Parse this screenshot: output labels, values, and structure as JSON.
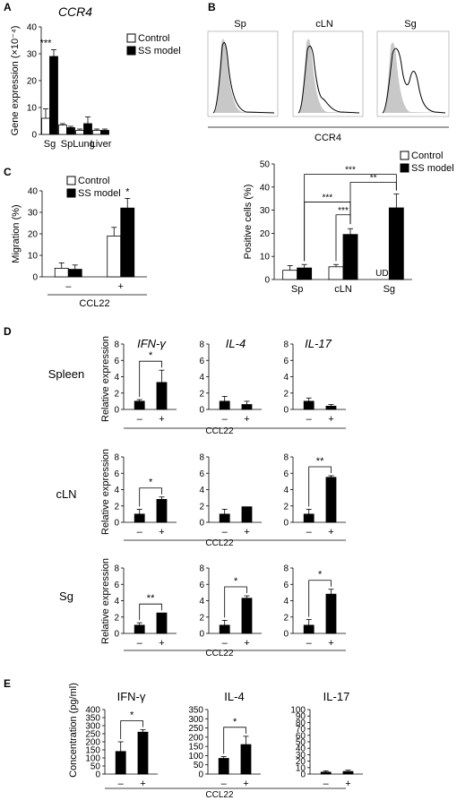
{
  "panel_letters": {
    "a": "A",
    "b": "B",
    "c": "C",
    "d": "D",
    "e": "E"
  },
  "legend": {
    "control": "Control",
    "ss_model": "SS model"
  },
  "colors": {
    "control_fill": "#ffffff",
    "ss_fill": "#000000",
    "histogram_fill": "#c8c8c8",
    "axis": "#000000"
  },
  "stimulation": {
    "minus": "–",
    "plus": "+",
    "ccl22": "CCL22"
  },
  "panel_b": {
    "headers": [
      "Sp",
      "cLN",
      "Sg"
    ],
    "xlabel": "CCR4",
    "histogram_style": "grey filled isotype vs black outlined CCR4 staining"
  },
  "panel_d": {
    "markers": [
      "IFN-γ",
      "IL-4",
      "IL-17"
    ],
    "tissues": [
      "Spleen",
      "cLN",
      "Sg"
    ],
    "ylabel": "Relative expression"
  },
  "panel_e": {
    "ylabel": "Concentration (pg/ml)"
  },
  "chart_data": [
    {
      "id": "A",
      "type": "bar",
      "title": "CCR4",
      "ylabel": "Gene expression (×10⁻⁴)",
      "ylim": [
        0,
        40
      ],
      "yticks": [
        0,
        10,
        20,
        30,
        40
      ],
      "categories": [
        "Sg",
        "Sp",
        "Lung",
        "Liver"
      ],
      "series": [
        {
          "name": "Control",
          "values": [
            6,
            3.5,
            1.5,
            1.5
          ],
          "errors": [
            3.5,
            0.5,
            0.5,
            0.5
          ]
        },
        {
          "name": "SS model",
          "values": [
            29,
            2.5,
            4,
            1.5
          ],
          "errors": [
            2.5,
            0.5,
            2.5,
            0.5
          ]
        }
      ],
      "annotations": [
        {
          "category": "Sg",
          "text": "***"
        }
      ]
    },
    {
      "id": "C",
      "type": "bar",
      "ylabel": "Migration (%)",
      "ylim": [
        0,
        40
      ],
      "yticks": [
        0,
        10,
        20,
        30,
        40
      ],
      "categories": [
        "–",
        "+"
      ],
      "xlabel": "CCL22",
      "series": [
        {
          "name": "Control",
          "values": [
            4,
            19
          ],
          "errors": [
            2.5,
            4
          ]
        },
        {
          "name": "SS model",
          "values": [
            3.5,
            32
          ],
          "errors": [
            2,
            4.5
          ]
        }
      ],
      "annotations": [
        {
          "category": "+",
          "text": "*"
        }
      ]
    },
    {
      "id": "B-right",
      "type": "bar",
      "ylabel": "Positive cells (%)",
      "ylim": [
        0,
        50
      ],
      "yticks": [
        0,
        10,
        20,
        30,
        40,
        50
      ],
      "categories": [
        "Sp",
        "cLN",
        "Sg"
      ],
      "series": [
        {
          "name": "Control",
          "values": [
            4,
            5.5,
            null
          ],
          "errors": [
            2,
            1,
            null
          ]
        },
        {
          "name": "SS model",
          "values": [
            5,
            19.5,
            31
          ],
          "errors": [
            1.5,
            2.5,
            6
          ]
        }
      ],
      "ud_label": "UD",
      "brackets": [
        {
          "text": "***",
          "from": "Sp SS model",
          "to": "Sg SS model"
        },
        {
          "text": "***",
          "from": "Sp SS model",
          "to": "cLN SS model"
        },
        {
          "text": "***",
          "from": "cLN Control",
          "to": "cLN SS model"
        },
        {
          "text": "**",
          "from": "cLN SS model",
          "to": "Sg SS model"
        }
      ]
    },
    {
      "id": "D-Spleen-IFN",
      "type": "bar",
      "ylim": [
        0,
        8
      ],
      "yticks": [
        0,
        2,
        4,
        6,
        8
      ],
      "categories": [
        "–",
        "+"
      ],
      "values": [
        1,
        3.3
      ],
      "errors": [
        0.2,
        1.5
      ],
      "signif": "*"
    },
    {
      "id": "D-Spleen-IL4",
      "type": "bar",
      "ylim": [
        0,
        8
      ],
      "yticks": [
        0,
        2,
        4,
        6,
        8
      ],
      "categories": [
        "–",
        "+"
      ],
      "values": [
        1,
        0.6
      ],
      "errors": [
        0.6,
        0.4
      ],
      "signif": ""
    },
    {
      "id": "D-Spleen-IL17",
      "type": "bar",
      "ylim": [
        0,
        8
      ],
      "yticks": [
        0,
        2,
        4,
        6,
        8
      ],
      "categories": [
        "–",
        "+"
      ],
      "values": [
        1,
        0.4
      ],
      "errors": [
        0.4,
        0.2
      ],
      "signif": ""
    },
    {
      "id": "D-cLN-IFN",
      "type": "bar",
      "ylim": [
        0,
        8
      ],
      "yticks": [
        0,
        2,
        4,
        6,
        8
      ],
      "categories": [
        "–",
        "+"
      ],
      "values": [
        1,
        2.8
      ],
      "errors": [
        0.6,
        0.3
      ],
      "signif": "*"
    },
    {
      "id": "D-cLN-IL4",
      "type": "bar",
      "ylim": [
        0,
        8
      ],
      "yticks": [
        0,
        2,
        4,
        6,
        8
      ],
      "categories": [
        "–",
        "+"
      ],
      "values": [
        1,
        1.9
      ],
      "errors": [
        0.6,
        0
      ],
      "signif": ""
    },
    {
      "id": "D-cLN-IL17",
      "type": "bar",
      "ylim": [
        0,
        8
      ],
      "yticks": [
        0,
        2,
        4,
        6,
        8
      ],
      "categories": [
        "–",
        "+"
      ],
      "values": [
        1,
        5.5
      ],
      "errors": [
        0.6,
        0.2
      ],
      "signif": "**"
    },
    {
      "id": "D-Sg-IFN",
      "type": "bar",
      "ylim": [
        0,
        8
      ],
      "yticks": [
        0,
        2,
        4,
        6,
        8
      ],
      "categories": [
        "–",
        "+"
      ],
      "values": [
        1,
        2.5
      ],
      "errors": [
        0.3,
        0
      ],
      "signif": "**"
    },
    {
      "id": "D-Sg-IL4",
      "type": "bar",
      "ylim": [
        0,
        8
      ],
      "yticks": [
        0,
        2,
        4,
        6,
        8
      ],
      "categories": [
        "–",
        "+"
      ],
      "values": [
        1,
        4.3
      ],
      "errors": [
        0.6,
        0.3
      ],
      "signif": "*"
    },
    {
      "id": "D-Sg-IL17",
      "type": "bar",
      "ylim": [
        0,
        8
      ],
      "yticks": [
        0,
        2,
        4,
        6,
        8
      ],
      "categories": [
        "–",
        "+"
      ],
      "values": [
        1,
        4.8
      ],
      "errors": [
        0.7,
        0.6
      ],
      "signif": "*"
    },
    {
      "id": "E-IFN",
      "type": "bar",
      "title": "IFN-γ",
      "ylim": [
        0,
        400
      ],
      "yticks": [
        0,
        50,
        100,
        150,
        200,
        250,
        300,
        350,
        400
      ],
      "categories": [
        "–",
        "+"
      ],
      "values": [
        140,
        260
      ],
      "errors": [
        60,
        15
      ],
      "signif": "*"
    },
    {
      "id": "E-IL4",
      "type": "bar",
      "title": "IL-4",
      "ylim": [
        0,
        350
      ],
      "yticks": [
        0,
        50,
        100,
        150,
        200,
        250,
        300,
        350
      ],
      "categories": [
        "–",
        "+"
      ],
      "values": [
        85,
        160
      ],
      "errors": [
        10,
        45
      ],
      "signif": "*"
    },
    {
      "id": "E-IL17",
      "type": "bar",
      "title": "IL-17",
      "ylim": [
        0,
        100
      ],
      "yticks": [
        0,
        10,
        20,
        30,
        40,
        50,
        60,
        70,
        80,
        90,
        100
      ],
      "categories": [
        "–",
        "+"
      ],
      "values": [
        3,
        4
      ],
      "errors": [
        2,
        2
      ],
      "signif": ""
    }
  ]
}
